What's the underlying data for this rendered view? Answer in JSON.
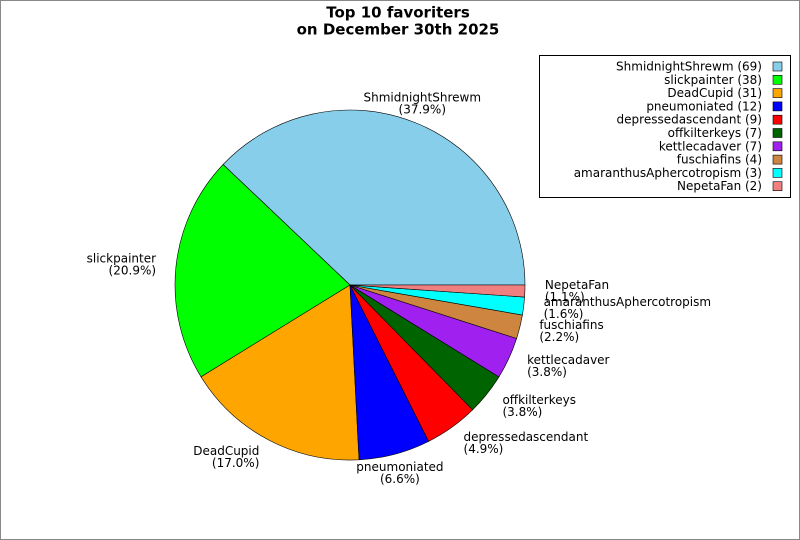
{
  "chart_data": {
    "type": "pie",
    "title": [
      "Top 10 favoriters",
      "on December 30th 2025"
    ],
    "categories": [
      "ShmidnightShrewm",
      "slickpainter",
      "DeadCupid",
      "pneumoniated",
      "depressedascendant",
      "offkilterkeys",
      "kettlecadaver",
      "fuschiafins",
      "amaranthusAphercotropism",
      "NepetaFan"
    ],
    "values": [
      69,
      38,
      31,
      12,
      9,
      7,
      7,
      4,
      3,
      2
    ],
    "percent_labels": [
      "(37.9%)",
      "(20.9%)",
      "(17.0%)",
      "(6.6%)",
      "(4.9%)",
      "(3.8%)",
      "(3.8%)",
      "(2.2%)",
      "(1.6%)",
      "(1.1%)"
    ],
    "legend_labels": [
      "ShmidnightShrewm (69)",
      "slickpainter (38)",
      "DeadCupid (31)",
      "pneumoniated (12)",
      "depressedascendant (9)",
      "offkilterkeys (7)",
      "kettlecadaver (7)",
      "fuschiafins (4)",
      "amaranthusAphercotropism (3)",
      "NepetaFan (2)"
    ],
    "colors": [
      "#87ceeb",
      "#00ff00",
      "#ffa500",
      "#0000ff",
      "#ff0000",
      "#006400",
      "#a020f0",
      "#cd853f",
      "#00ffff",
      "#f08080"
    ],
    "legend": "upper right"
  }
}
